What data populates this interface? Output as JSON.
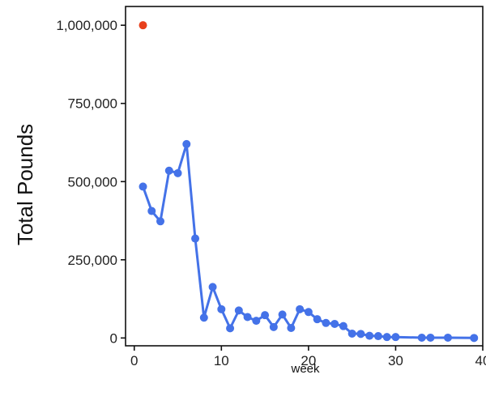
{
  "colors": {
    "series_line": "#4472E8",
    "highlight_point": "#E8401C",
    "axis": "#111111",
    "background": "#ffffff"
  },
  "chart_data": {
    "type": "line",
    "xlabel": "week",
    "ylabel": "Total Pounds",
    "xlim": [
      -1,
      40
    ],
    "ylim": [
      -25000,
      1060000
    ],
    "grid": false,
    "x_ticks": [
      0,
      10,
      20,
      30,
      40
    ],
    "x_tick_labels": [
      "0",
      "10",
      "20",
      "30",
      "40"
    ],
    "y_ticks": [
      0,
      250000,
      500000,
      750000,
      1000000
    ],
    "y_tick_labels": [
      "0",
      "250,000",
      "500,000",
      "750,000",
      "1,000,000"
    ],
    "series": [
      {
        "x": [
          1,
          2,
          3,
          4,
          5,
          6,
          7,
          8,
          9,
          10,
          11,
          12,
          13,
          14,
          15,
          16,
          17,
          18,
          19,
          20,
          21,
          22,
          23,
          24,
          25,
          26,
          27,
          28,
          29,
          30,
          33,
          34,
          36,
          39
        ],
        "y": [
          484000,
          406000,
          373000,
          535000,
          527000,
          620000,
          318000,
          65000,
          163000,
          92000,
          31000,
          88000,
          67000,
          55000,
          73000,
          35000,
          75000,
          32000,
          92000,
          83000,
          60000,
          48000,
          45000,
          38000,
          14000,
          13000,
          7000,
          6000,
          3000,
          3000,
          1000,
          1000,
          1000,
          0
        ]
      }
    ],
    "highlight": {
      "x": 1,
      "y": 1000000
    }
  }
}
